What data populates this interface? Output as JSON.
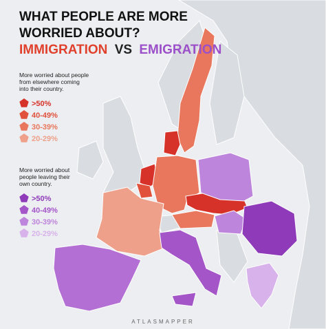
{
  "title": {
    "lines": [
      "WHAT PEOPLE ARE MORE",
      "WORRIED ABOUT?"
    ],
    "immigration": "IMMIGRATION",
    "vs": "VS",
    "emigration": "EMIGRATION"
  },
  "legends": [
    {
      "heading": [
        "More worried about people",
        "from elsewhere coming",
        "into their country."
      ],
      "items": [
        {
          "label": ">50%",
          "color": "#d7322a"
        },
        {
          "label": "40-49%",
          "color": "#e0503a"
        },
        {
          "label": "30-39%",
          "color": "#e8775d"
        },
        {
          "label": "20-29%",
          "color": "#eea08a"
        }
      ]
    },
    {
      "heading": [
        "More worried about",
        "people leaving their",
        "own country."
      ],
      "items": [
        {
          "label": ">50%",
          "color": "#8e3ab9"
        },
        {
          "label": "40-49%",
          "color": "#a456c9"
        },
        {
          "label": "30-39%",
          "color": "#bd85dc"
        },
        {
          "label": "20-29%",
          "color": "#d8b2ea"
        }
      ]
    }
  ],
  "footer": "ATLASMAPPER"
}
